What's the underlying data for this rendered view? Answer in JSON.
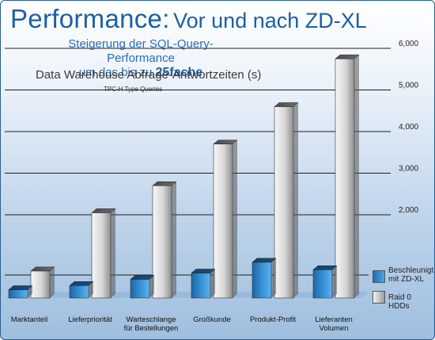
{
  "header": {
    "title_main": "Performance:",
    "title_sub": "Vor und nach ZD-XL",
    "subtitle_line1": "Steigerung der SQL-Query-Performance",
    "subtitle_line2_prefix": "um das bis zu",
    "subtitle_line2_emph": "25fache",
    "caption": "Data Warehouse Abfrage-Antwortzeiten (s)",
    "note": "TPC-H Type Queries"
  },
  "legend": {
    "zdxl_line1": "Beschleunigt",
    "zdxl_line2": "mit ZD-XL",
    "raid": "Raid 0 HDDs"
  },
  "colors": {
    "zdxl": "#2f86c8",
    "raid": "#d0d0d0",
    "title": "#1d5fa3"
  },
  "chart_data": {
    "type": "bar",
    "categories": [
      [
        "Marktanteil"
      ],
      [
        "Lieferpriorität"
      ],
      [
        "Warteschlange",
        "für Bestellungen"
      ],
      [
        "Großkunde"
      ],
      [
        "Produkt-Profit"
      ],
      [
        "Lieferanten",
        "Volumen"
      ]
    ],
    "series": [
      {
        "name": "Beschleunigt mit ZD-XL",
        "values": [
          200,
          300,
          450,
          600,
          860,
          680
        ]
      },
      {
        "name": "Raid 0 HDDs",
        "values": [
          650,
          2050,
          2700,
          3700,
          4600,
          5750
        ]
      }
    ],
    "ylim": [
      0,
      6000
    ],
    "yticks": [
      2000,
      3000,
      4000,
      5000,
      6000
    ],
    "ytick_labels": [
      "2,000",
      "3,000",
      "4,000",
      "5,000",
      "6,000"
    ],
    "grid": true
  }
}
